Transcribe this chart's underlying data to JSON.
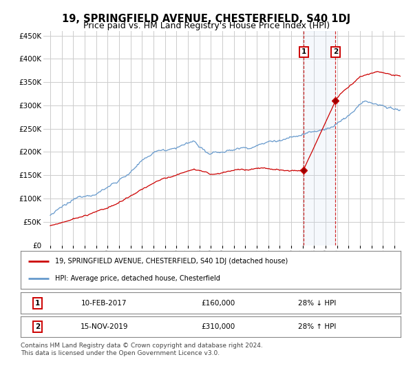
{
  "title": "19, SPRINGFIELD AVENUE, CHESTERFIELD, S40 1DJ",
  "subtitle": "Price paid vs. HM Land Registry's House Price Index (HPI)",
  "title_fontsize": 10.5,
  "subtitle_fontsize": 9,
  "background_color": "#ffffff",
  "grid_color": "#cccccc",
  "plot_bg": "#ffffff",
  "ylim": [
    0,
    460000
  ],
  "yticks": [
    0,
    50000,
    100000,
    150000,
    200000,
    250000,
    300000,
    350000,
    400000,
    450000
  ],
  "x_start_year": 1995,
  "x_end_year": 2025,
  "red_line_color": "#cc0000",
  "blue_line_color": "#6699cc",
  "transaction1_year": 2017.1,
  "transaction1_value": 160000,
  "transaction2_year": 2019.87,
  "transaction2_value": 310000,
  "vline_color": "#cc0000",
  "highlight_color": "#ddeeff",
  "legend_red": "19, SPRINGFIELD AVENUE, CHESTERFIELD, S40 1DJ (detached house)",
  "legend_blue": "HPI: Average price, detached house, Chesterfield",
  "table_row1_num": "1",
  "table_row1_date": "10-FEB-2017",
  "table_row1_price": "£160,000",
  "table_row1_hpi": "28% ↓ HPI",
  "table_row2_num": "2",
  "table_row2_date": "15-NOV-2019",
  "table_row2_price": "£310,000",
  "table_row2_hpi": "28% ↑ HPI",
  "footer": "Contains HM Land Registry data © Crown copyright and database right 2024.\nThis data is licensed under the Open Government Licence v3.0.",
  "footer_fontsize": 6.5
}
